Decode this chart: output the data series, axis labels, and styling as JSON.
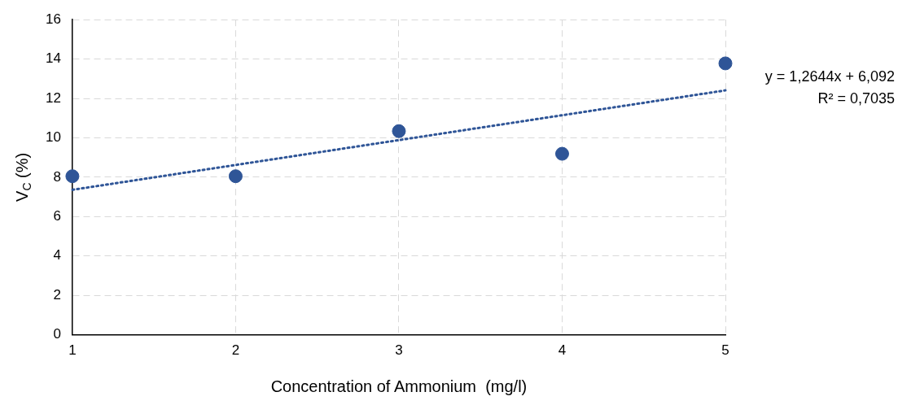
{
  "chart_data": {
    "type": "scatter",
    "xlabel": "Concentration of Ammonium  (mg/l)",
    "ylabel": "V$_{C}$ (%)",
    "x": [
      1,
      2,
      3,
      4,
      5
    ],
    "series": [
      {
        "color": "#2f5597",
        "values": [
          8.05,
          8.05,
          10.34,
          9.19,
          13.78
        ],
        "marker": "circle"
      },
      {
        "type": "line",
        "color": "#2f5597",
        "x": [
          1,
          5
        ],
        "values": [
          7.36,
          12.41
        ],
        "line_style": "dotted",
        "marker": "none"
      }
    ],
    "xlim": [
      1,
      5
    ],
    "xticks": [
      1,
      2,
      3,
      4,
      5
    ],
    "ylim": [
      0,
      16
    ],
    "yticks": [
      0,
      2,
      4,
      6,
      8,
      10,
      12,
      14,
      16
    ],
    "grid": true,
    "legend": false,
    "annotations": [
      "y = 1,2644x + 6,092",
      "R² = 0,7035"
    ]
  }
}
